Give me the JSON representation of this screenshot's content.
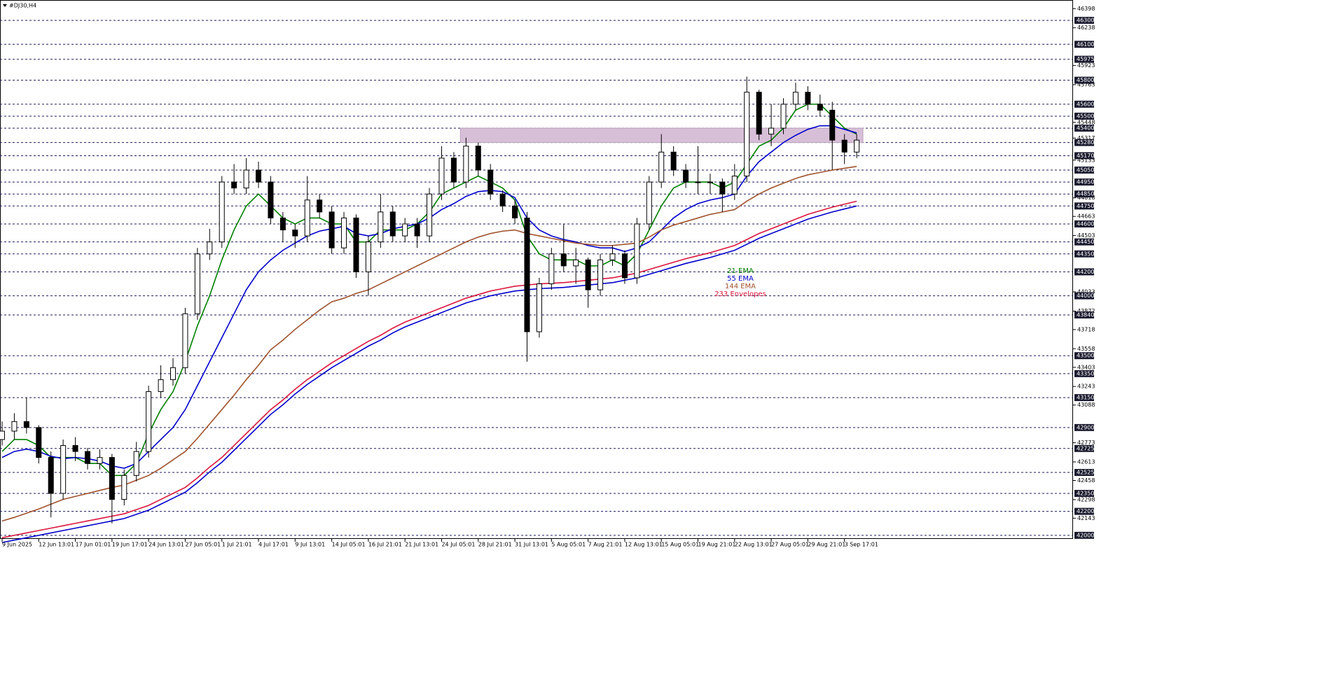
{
  "chart_data": {
    "type": "candlestick",
    "title": "#DJ30,H4",
    "categories": [
      "9 Jun 2025",
      null,
      null,
      "12 Jun 13:01",
      null,
      null,
      "17 Jun 01:01",
      null,
      null,
      "19 Jun 17:01",
      null,
      null,
      "24 Jun 13:01",
      null,
      null,
      "27 Jun 05:01",
      null,
      null,
      "1 Jul 21:01",
      null,
      null,
      "4 Jul 17:01",
      null,
      null,
      "9 Jul 13:01",
      null,
      null,
      "14 Jul 05:01",
      null,
      null,
      "16 Jul 21:01",
      null,
      null,
      "21 Jul 13:01",
      null,
      null,
      "24 Jul 05:01",
      null,
      null,
      "28 Jul 21:01",
      null,
      null,
      "31 Jul 13:01",
      null,
      null,
      "5 Aug 05:01",
      null,
      null,
      "7 Aug 21:01",
      null,
      null,
      "12 Aug 13:01",
      null,
      null,
      "15 Aug 05:01",
      null,
      null,
      "19 Aug 21:01",
      null,
      null,
      "22 Aug 13:01",
      null,
      null,
      "27 Aug 05:01",
      null,
      null,
      "29 Aug 21:01",
      null,
      null,
      "3 Sep 17:01",
      null
    ],
    "open": [
      42800,
      42870,
      42950,
      42900,
      42650,
      42350,
      42750,
      42700,
      42600,
      42650,
      42300,
      42500,
      42700,
      43200,
      43300,
      43400,
      43850,
      44350,
      44450,
      44950,
      44900,
      45050,
      44950,
      44650,
      44550,
      44500,
      44800,
      44700,
      44400,
      44650,
      44200,
      44450,
      44700,
      44500,
      44600,
      44500,
      44850,
      45150,
      44950,
      45250,
      45050,
      44850,
      44750,
      44650,
      43700,
      44100,
      44350,
      44250,
      44300,
      44050,
      44300,
      44350,
      44150,
      44600,
      44950,
      45200,
      45050,
      44950,
      44950,
      44950,
      44850,
      45000,
      45700,
      45350,
      45400,
      45600,
      45700,
      45600,
      45550,
      45300,
      45200
    ],
    "high": [
      42950,
      43020,
      43150,
      42920,
      42700,
      42800,
      42820,
      42730,
      42720,
      42680,
      42550,
      42780,
      43250,
      43420,
      43480,
      43900,
      44400,
      44560,
      45000,
      45100,
      45150,
      45120,
      45000,
      44700,
      44600,
      45000,
      44850,
      44750,
      44700,
      44680,
      44500,
      44850,
      44750,
      44650,
      44650,
      44900,
      45250,
      45200,
      45320,
      45280,
      45100,
      44880,
      44800,
      44700,
      44150,
      44400,
      44600,
      44400,
      44320,
      44350,
      44420,
      44380,
      44650,
      45000,
      45350,
      45250,
      45100,
      45250,
      45020,
      44980,
      45100,
      45830,
      45720,
      45600,
      45650,
      45780,
      45750,
      45680,
      45620,
      45350,
      45350
    ],
    "low": [
      42750,
      42800,
      42850,
      42600,
      42150,
      42300,
      42620,
      42550,
      42550,
      42100,
      42250,
      42450,
      42650,
      43150,
      43250,
      43350,
      43800,
      44300,
      44400,
      44850,
      44850,
      44900,
      44600,
      44450,
      44400,
      44450,
      44650,
      44350,
      44350,
      44150,
      44000,
      44400,
      44450,
      44450,
      44400,
      44450,
      44800,
      44900,
      44900,
      45000,
      44800,
      44700,
      44600,
      43450,
      43650,
      44050,
      44200,
      44100,
      43900,
      44000,
      44250,
      44100,
      44100,
      44550,
      44900,
      45000,
      44900,
      44850,
      44850,
      44700,
      44800,
      44950,
      45300,
      45250,
      45350,
      45550,
      45550,
      45500,
      45050,
      45100,
      45150
    ],
    "close": [
      42870,
      42950,
      42900,
      42650,
      42350,
      42750,
      42700,
      42600,
      42650,
      42300,
      42500,
      42700,
      43200,
      43300,
      43400,
      43850,
      44350,
      44450,
      44950,
      44900,
      45050,
      44950,
      44650,
      44550,
      44500,
      44800,
      44700,
      44400,
      44650,
      44200,
      44450,
      44700,
      44500,
      44600,
      44500,
      44850,
      45150,
      44950,
      45250,
      45050,
      44850,
      44750,
      44650,
      43700,
      44100,
      44350,
      44250,
      44300,
      44050,
      44300,
      44350,
      44150,
      44600,
      44950,
      45200,
      45050,
      44950,
      44950,
      44950,
      44850,
      45000,
      45700,
      45350,
      45400,
      45600,
      45700,
      45600,
      45550,
      45300,
      45200,
      45300
    ],
    "series": [
      {
        "name": "21 EMA",
        "color": "#008000",
        "values": [
          42700,
          42800,
          42800,
          42750,
          42650,
          42650,
          42650,
          42600,
          42600,
          42500,
          42500,
          42600,
          42850,
          43050,
          43200,
          43450,
          43750,
          44000,
          44300,
          44550,
          44750,
          44850,
          44750,
          44650,
          44600,
          44650,
          44650,
          44600,
          44600,
          44450,
          44450,
          44550,
          44550,
          44550,
          44600,
          44700,
          44850,
          44900,
          44950,
          45000,
          44950,
          44900,
          44800,
          44500,
          44350,
          44300,
          44300,
          44300,
          44250,
          44250,
          44300,
          44250,
          44350,
          44550,
          44750,
          44900,
          44950,
          44950,
          44950,
          44900,
          44950,
          45100,
          45250,
          45300,
          45400,
          45550,
          45600,
          45600,
          45500,
          45400,
          45350
        ]
      },
      {
        "name": "55 EMA",
        "color": "#0000cd",
        "values": [
          42650,
          42700,
          42720,
          42700,
          42660,
          42640,
          42650,
          42640,
          42620,
          42580,
          42560,
          42600,
          42700,
          42800,
          42900,
          43050,
          43250,
          43450,
          43650,
          43850,
          44050,
          44200,
          44300,
          44380,
          44440,
          44500,
          44540,
          44560,
          44580,
          44520,
          44500,
          44520,
          44560,
          44580,
          44600,
          44650,
          44720,
          44770,
          44830,
          44870,
          44880,
          44870,
          44820,
          44650,
          44550,
          44500,
          44470,
          44450,
          44420,
          44400,
          44400,
          44370,
          44400,
          44450,
          44550,
          44650,
          44720,
          44770,
          44800,
          44820,
          44850,
          45000,
          45120,
          45200,
          45280,
          45340,
          45390,
          45420,
          45420,
          45390,
          45360
        ]
      },
      {
        "name": "144 EMA",
        "color": "#a0522d",
        "values": [
          42120,
          42150,
          42185,
          42220,
          42260,
          42300,
          42325,
          42350,
          42375,
          42400,
          42420,
          42460,
          42500,
          42560,
          42630,
          42700,
          42810,
          42930,
          43050,
          43170,
          43300,
          43420,
          43550,
          43630,
          43720,
          43800,
          43880,
          43950,
          43980,
          44020,
          44050,
          44100,
          44150,
          44200,
          44250,
          44300,
          44350,
          44400,
          44450,
          44490,
          44520,
          44540,
          44550,
          44520,
          44500,
          44480,
          44460,
          44440,
          44430,
          44420,
          44420,
          44430,
          44440,
          44490,
          44550,
          44590,
          44620,
          44650,
          44680,
          44700,
          44720,
          44790,
          44850,
          44900,
          44940,
          44980,
          45010,
          45030,
          45050,
          45065,
          45080
        ]
      },
      {
        "name": "233 Envelopes",
        "color": "#dc143c",
        "values": [
          41980,
          42000,
          42020,
          42040,
          42060,
          42080,
          42100,
          42120,
          42140,
          42160,
          42180,
          42215,
          42250,
          42300,
          42350,
          42400,
          42480,
          42570,
          42650,
          42750,
          42850,
          42950,
          43050,
          43130,
          43220,
          43300,
          43370,
          43440,
          43500,
          43560,
          43620,
          43670,
          43730,
          43780,
          43820,
          43860,
          43900,
          43940,
          43980,
          44010,
          44040,
          44060,
          44080,
          44090,
          44100,
          44105,
          44110,
          44120,
          44130,
          44140,
          44150,
          44170,
          44190,
          44220,
          44250,
          44280,
          44310,
          44335,
          44360,
          44390,
          44420,
          44470,
          44520,
          44560,
          44600,
          44640,
          44680,
          44710,
          44740,
          44765,
          44790
        ]
      },
      {
        "color": "#0000cd",
        "values": [
          41940,
          41960,
          41980,
          42000,
          42020,
          42040,
          42060,
          42080,
          42100,
          42120,
          42140,
          42175,
          42210,
          42260,
          42310,
          42360,
          42440,
          42530,
          42610,
          42710,
          42810,
          42910,
          43010,
          43090,
          43180,
          43260,
          43330,
          43400,
          43460,
          43520,
          43580,
          43630,
          43690,
          43740,
          43780,
          43820,
          43860,
          43900,
          43940,
          43970,
          44000,
          44020,
          44040,
          44050,
          44060,
          44065,
          44070,
          44080,
          44090,
          44100,
          44110,
          44130,
          44150,
          44180,
          44210,
          44240,
          44270,
          44295,
          44320,
          44350,
          44380,
          44430,
          44480,
          44520,
          44560,
          44600,
          44640,
          44670,
          44700,
          44725,
          44750
        ]
      }
    ],
    "zone": {
      "low": 45280,
      "high": 45400,
      "from": 38,
      "color": "#d8bfd8"
    },
    "levels": [
      46300,
      46100,
      45975,
      45800,
      45600,
      45500,
      45400,
      45280,
      45170,
      45050,
      44950,
      44850,
      44750,
      44600,
      44450,
      44350,
      44200,
      44000,
      43840,
      43500,
      43350,
      43150,
      42900,
      42725,
      42525,
      42350,
      42200,
      42000
    ],
    "ylim": [
      41970,
      46470
    ],
    "yticks": [
      42143,
      42298,
      42458,
      42613,
      42773,
      43088,
      43243,
      43403,
      43558,
      43718,
      43872,
      44033,
      44503,
      44663,
      44818,
      45133,
      45317,
      45448,
      45763,
      45923,
      46238,
      46398
    ]
  }
}
